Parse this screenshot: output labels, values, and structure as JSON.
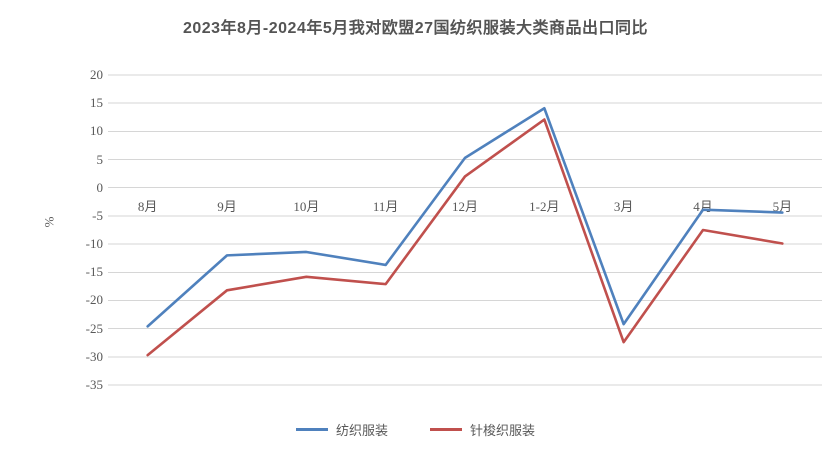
{
  "title": "2023年8月-2024年5月我对欧盟27国纺织服装大类商品出口同比",
  "colors": {
    "series1": "#4F81BD",
    "series2": "#C0504D",
    "gridline": "#D6D6D6",
    "axis_text": "#595959",
    "title_text": "#545454",
    "background": "#FFFFFF"
  },
  "chart_data": {
    "type": "line",
    "title": "2023年8月-2024年5月我对欧盟27国纺织服装大类商品出口同比",
    "categories": [
      "8月",
      "9月",
      "10月",
      "11月",
      "12月",
      "1-2月",
      "3月",
      "4月",
      "5月"
    ],
    "series": [
      {
        "name": "纺织服装",
        "color": "#4F81BD",
        "values": [
          -24.6,
          -12.0,
          -11.4,
          -13.7,
          5.3,
          14.1,
          -24.2,
          -3.9,
          -4.4
        ]
      },
      {
        "name": "针梭织服装",
        "color": "#C0504D",
        "values": [
          -29.7,
          -18.2,
          -15.8,
          -17.1,
          2.0,
          12.1,
          -27.4,
          -7.5,
          -9.9
        ]
      }
    ],
    "xlabel": "",
    "ylabel": "%",
    "ylim": [
      -35,
      20
    ],
    "yticks": [
      20,
      15,
      10,
      5,
      0,
      -5,
      -10,
      -15,
      -20,
      -25,
      -30,
      -35
    ],
    "grid": true,
    "legend_position": "bottom"
  }
}
